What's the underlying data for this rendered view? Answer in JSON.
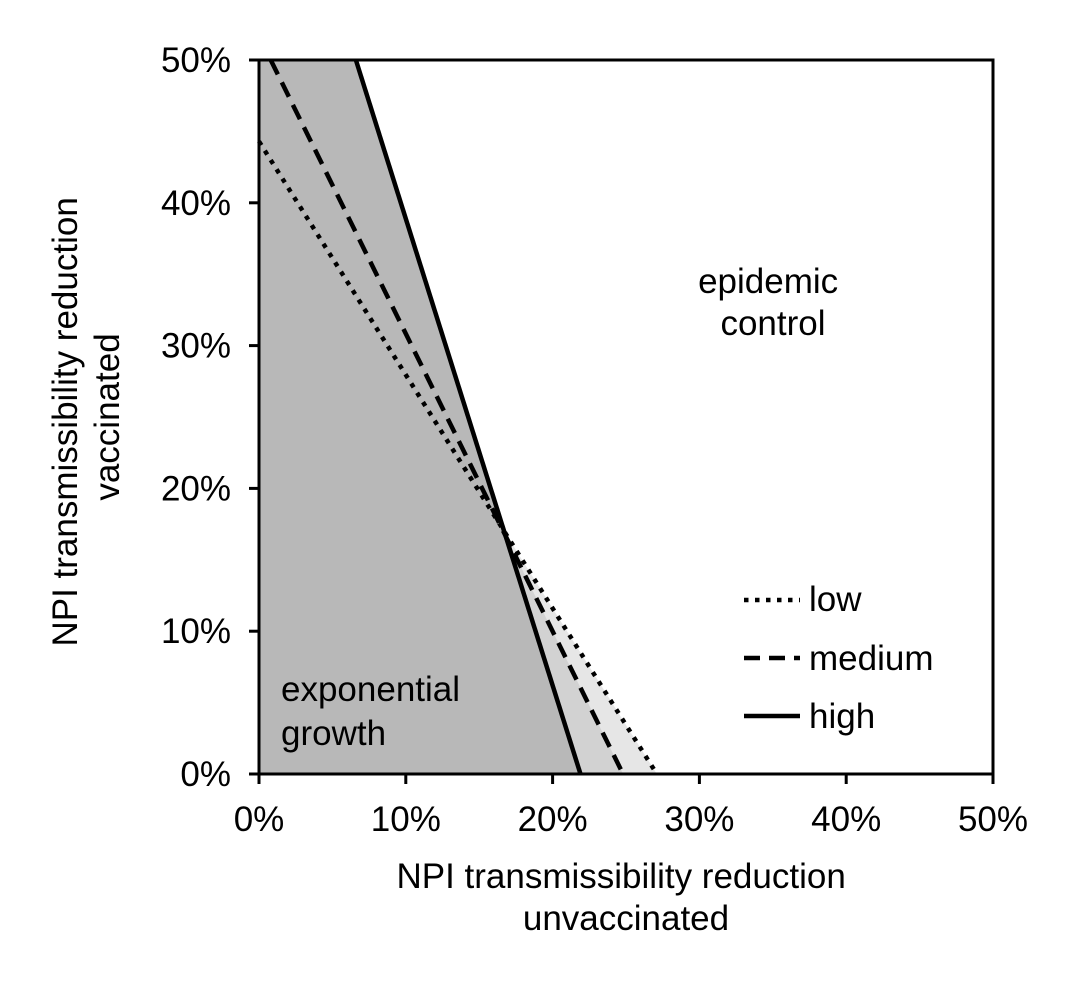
{
  "chart_data": {
    "type": "line",
    "xlabel": [
      "NPI transmissibility reduction",
      "unvaccinated"
    ],
    "ylabel": [
      "NPI transmissibility reduction",
      "vaccinated"
    ],
    "xlim": [
      0,
      50
    ],
    "ylim": [
      0,
      50
    ],
    "x_ticks": [
      0,
      10,
      20,
      30,
      40,
      50
    ],
    "y_ticks": [
      0,
      10,
      20,
      30,
      40,
      50
    ],
    "x_tick_labels": [
      "0%",
      "10%",
      "20%",
      "30%",
      "40%",
      "50%"
    ],
    "y_tick_labels": [
      "0%",
      "10%",
      "20%",
      "30%",
      "40%",
      "50%"
    ],
    "grid": false,
    "legend_position": "bottom-right",
    "series": [
      {
        "name": "low",
        "style": "dotted",
        "color": "#000000",
        "x": [
          0,
          27.1
        ],
        "y": [
          44.3,
          0
        ]
      },
      {
        "name": "medium",
        "style": "dashed",
        "color": "#000000",
        "x": [
          0.8,
          24.8
        ],
        "y": [
          50,
          0
        ]
      },
      {
        "name": "high",
        "style": "solid",
        "color": "#000000",
        "x": [
          6.6,
          21.9
        ],
        "y": [
          50,
          0
        ]
      }
    ],
    "regions": [
      {
        "fill": "#e6e6e6",
        "boundary": "low"
      },
      {
        "fill": "#d2d2d2",
        "boundary": "medium"
      },
      {
        "fill": "#b8b8b8",
        "boundary": "high"
      }
    ],
    "annotations": [
      {
        "lines": [
          "epidemic",
          "control"
        ],
        "x": 35,
        "y": 33
      },
      {
        "lines": [
          "exponential",
          "growth"
        ],
        "x": 1.5,
        "y": 5.5
      }
    ]
  }
}
